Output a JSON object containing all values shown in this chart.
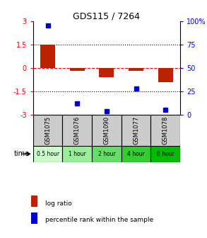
{
  "title": "GDS115 / 7264",
  "samples": [
    "GSM1075",
    "GSM1076",
    "GSM1090",
    "GSM1077",
    "GSM1078"
  ],
  "time_labels": [
    "0.5 hour",
    "1 hour",
    "2 hour",
    "4 hour",
    "6 hour"
  ],
  "time_colors": [
    "#ccffcc",
    "#99ee99",
    "#66dd66",
    "#33cc33",
    "#00bb00"
  ],
  "log_ratios": [
    1.5,
    -0.2,
    -0.6,
    -0.2,
    -0.9
  ],
  "percentile_ranks": [
    96,
    12,
    4,
    28,
    5
  ],
  "bar_color": "#bb2200",
  "dot_color": "#0000cc",
  "ylim_left": [
    -3,
    3
  ],
  "ylim_right": [
    0,
    100
  ],
  "yticks_left": [
    -3,
    -1.5,
    0,
    1.5,
    3
  ],
  "yticks_right": [
    0,
    25,
    50,
    75,
    100
  ],
  "bg_color": "#ffffff",
  "sample_bg": "#cccccc",
  "legend_log_ratio": "log ratio",
  "legend_percentile": "percentile rank within the sample",
  "time_label": "time"
}
